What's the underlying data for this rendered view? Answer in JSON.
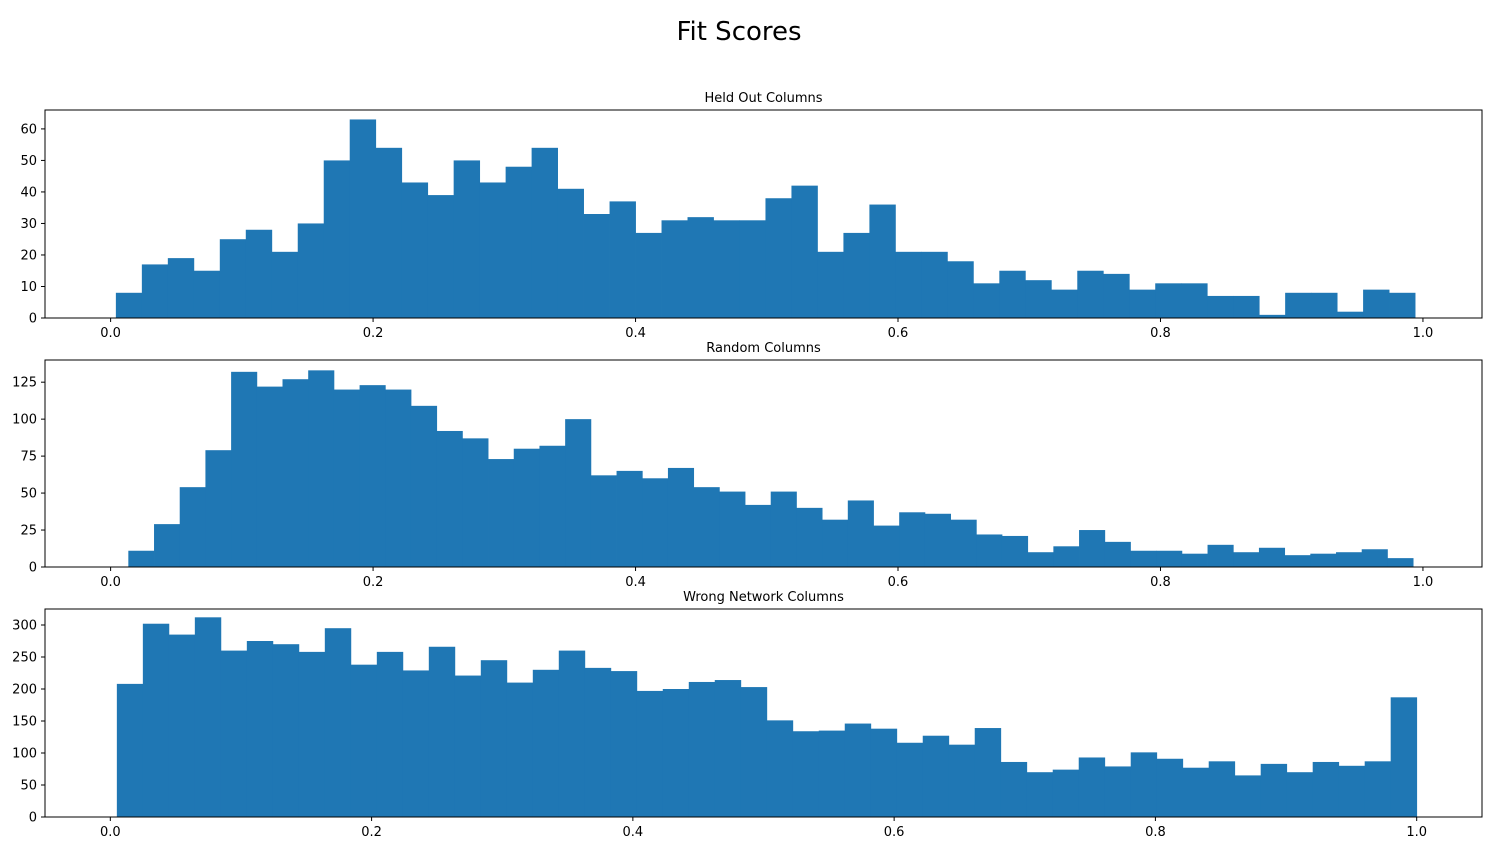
{
  "figure": {
    "title": "Fit Scores"
  },
  "colors": {
    "bar": "#1f77b4",
    "axis": "#000000",
    "background": "#ffffff"
  },
  "chart_data": [
    {
      "type": "bar",
      "title": "Held Out Columns",
      "xlabel": "",
      "ylabel": "",
      "xlim": [
        -0.05,
        1.045
      ],
      "ylim": [
        0,
        66
      ],
      "xticks": [
        0.0,
        0.2,
        0.4,
        0.6,
        0.8,
        1.0
      ],
      "xtick_labels": [
        "0.0",
        "0.2",
        "0.4",
        "0.6",
        "0.8",
        "1.0"
      ],
      "yticks": [
        0,
        10,
        20,
        30,
        40,
        50,
        60
      ],
      "ytick_labels": [
        "0",
        "10",
        "20",
        "30",
        "40",
        "50",
        "60"
      ],
      "bins": {
        "start": 0.004,
        "width": 0.0198
      },
      "values": [
        8,
        17,
        19,
        15,
        25,
        28,
        21,
        30,
        50,
        63,
        54,
        43,
        39,
        50,
        43,
        48,
        54,
        41,
        33,
        37,
        27,
        31,
        32,
        31,
        31,
        38,
        42,
        21,
        27,
        36,
        21,
        21,
        18,
        11,
        15,
        12,
        9,
        15,
        14,
        9,
        11,
        11,
        7,
        7,
        1,
        8,
        8,
        2,
        9,
        8
      ],
      "grid": false
    },
    {
      "type": "bar",
      "title": "Random Columns",
      "xlabel": "",
      "ylabel": "",
      "xlim": [
        -0.05,
        1.045
      ],
      "ylim": [
        0,
        140
      ],
      "xticks": [
        0.0,
        0.2,
        0.4,
        0.6,
        0.8,
        1.0
      ],
      "xtick_labels": [
        "0.0",
        "0.2",
        "0.4",
        "0.6",
        "0.8",
        "1.0"
      ],
      "yticks": [
        0,
        25,
        50,
        75,
        100,
        125
      ],
      "ytick_labels": [
        "0",
        "25",
        "50",
        "75",
        "100",
        "125"
      ],
      "bins": {
        "start": 0.0135,
        "width": 0.01958
      },
      "values": [
        11,
        29,
        54,
        79,
        132,
        122,
        127,
        133,
        120,
        123,
        120,
        109,
        92,
        87,
        73,
        80,
        82,
        100,
        62,
        65,
        60,
        67,
        54,
        51,
        42,
        51,
        40,
        32,
        45,
        28,
        37,
        36,
        32,
        22,
        21,
        10,
        14,
        25,
        17,
        11,
        11,
        9,
        15,
        10,
        13,
        8,
        9,
        10,
        12,
        6
      ],
      "grid": false
    },
    {
      "type": "bar",
      "title": "Wrong Network Columns",
      "xlabel": "",
      "ylabel": "",
      "xlim": [
        -0.05,
        1.05
      ],
      "ylim": [
        0,
        325
      ],
      "xticks": [
        0.0,
        0.2,
        0.4,
        0.6,
        0.8,
        1.0
      ],
      "xtick_labels": [
        "0.0",
        "0.2",
        "0.4",
        "0.6",
        "0.8",
        "1.0"
      ],
      "yticks": [
        0,
        50,
        100,
        150,
        200,
        250,
        300
      ],
      "ytick_labels": [
        "0",
        "50",
        "100",
        "150",
        "200",
        "250",
        "300"
      ],
      "bins": {
        "start": 0.005,
        "width": 0.0199
      },
      "values": [
        208,
        302,
        285,
        312,
        260,
        275,
        270,
        258,
        295,
        238,
        258,
        229,
        266,
        221,
        245,
        210,
        230,
        260,
        233,
        228,
        197,
        200,
        211,
        214,
        203,
        151,
        134,
        135,
        146,
        138,
        116,
        127,
        113,
        139,
        86,
        70,
        74,
        93,
        79,
        101,
        91,
        77,
        87,
        65,
        83,
        70,
        86,
        80,
        87,
        187
      ],
      "grid": false
    }
  ]
}
